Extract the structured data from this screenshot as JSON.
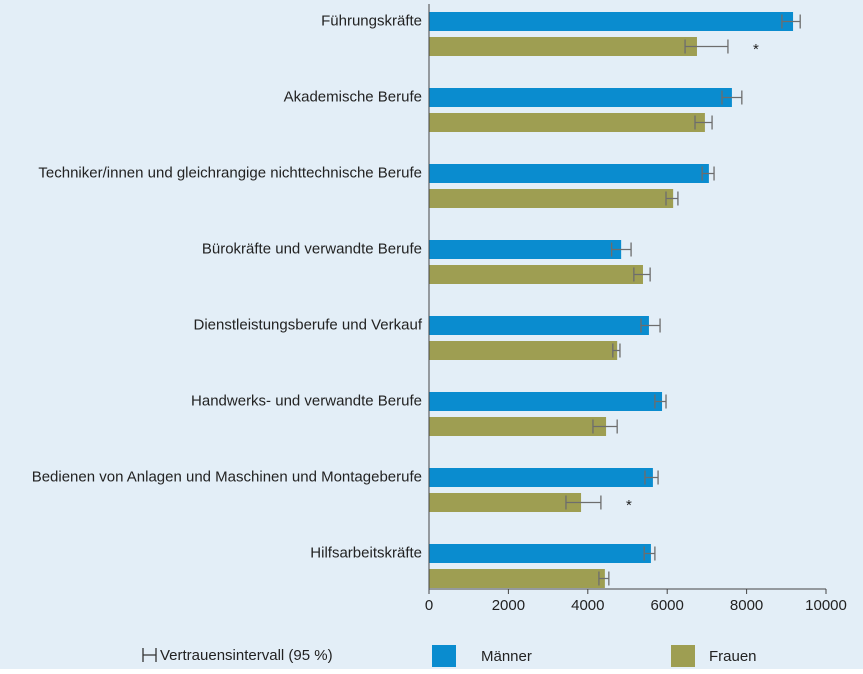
{
  "chart_data": {
    "type": "hbar",
    "categories": [
      "Führungskräfte",
      "Akademische Berufe",
      "Techniker/innen und gleichrangige nichttechnische Berufe",
      "Bürokräfte und verwandte Berufe",
      "Dienstleistungsberufe und Verkauf",
      "Handwerks- und verwandte Berufe",
      "Bedienen von Anlagen und Maschinen und Montageberufe",
      "Hilfsarbeitskräfte"
    ],
    "series": [
      {
        "name": "Männer",
        "color": "#0a8ccf",
        "values": [
          9170,
          7630,
          7050,
          4840,
          5540,
          5870,
          5640,
          5590
        ],
        "error_low": [
          8890,
          7380,
          6880,
          4600,
          5340,
          5690,
          5440,
          5420
        ],
        "error_high": [
          9350,
          7880,
          7180,
          5090,
          5820,
          5970,
          5770,
          5690
        ]
      },
      {
        "name": "Frauen",
        "color": "#9e9e52",
        "values": [
          6750,
          6950,
          6150,
          5390,
          4740,
          4460,
          3830,
          4430
        ],
        "error_low": [
          6450,
          6700,
          5970,
          5160,
          4630,
          4130,
          3450,
          4280
        ],
        "error_high": [
          7530,
          7130,
          6270,
          5570,
          4810,
          4740,
          4330,
          4530
        ]
      }
    ],
    "annotations": [
      {
        "text": "*",
        "category": 0,
        "series": 1
      },
      {
        "text": "*",
        "category": 6,
        "series": 1
      }
    ],
    "error_legend": "Vertrauensintervall (95 %)",
    "xlim": [
      0,
      10000
    ],
    "xticks": [
      0,
      2000,
      4000,
      6000,
      8000,
      10000
    ],
    "background": "#e3eef7"
  }
}
